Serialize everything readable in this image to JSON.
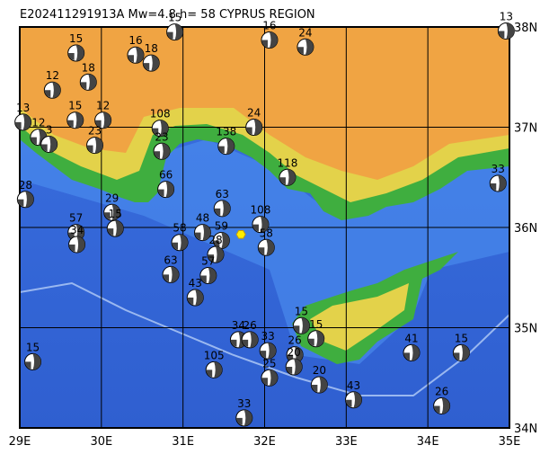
{
  "title": "E202411291913A Mw=4.8 h= 58 CYPRUS REGION",
  "lon_ticks": [
    {
      "value": 29,
      "label": "29E"
    },
    {
      "value": 30,
      "label": "30E"
    },
    {
      "value": 31,
      "label": "31E"
    },
    {
      "value": 32,
      "label": "32E"
    },
    {
      "value": 33,
      "label": "33E"
    },
    {
      "value": 34,
      "label": "34E"
    },
    {
      "value": 35,
      "label": "35E"
    }
  ],
  "lat_ticks": [
    {
      "value": 34,
      "label": "34N"
    },
    {
      "value": 35,
      "label": "35N"
    },
    {
      "value": 36,
      "label": "36N"
    },
    {
      "value": 37,
      "label": "37N"
    },
    {
      "value": 38,
      "label": "38N"
    }
  ],
  "main_event": {
    "lon": 31.71,
    "lat": 35.93
  },
  "events": [
    {
      "lon": 30.9,
      "lat": 37.95,
      "depth": 15
    },
    {
      "lon": 32.06,
      "lat": 37.87,
      "depth": 16
    },
    {
      "lon": 34.96,
      "lat": 37.96,
      "depth": 13
    },
    {
      "lon": 30.42,
      "lat": 37.72,
      "depth": 16
    },
    {
      "lon": 29.69,
      "lat": 37.74,
      "depth": 15
    },
    {
      "lon": 30.61,
      "lat": 37.64,
      "depth": 18
    },
    {
      "lon": 32.5,
      "lat": 37.8,
      "depth": 24
    },
    {
      "lon": 29.4,
      "lat": 37.37,
      "depth": 12
    },
    {
      "lon": 29.84,
      "lat": 37.45,
      "depth": 18
    },
    {
      "lon": 29.04,
      "lat": 37.05,
      "depth": 13
    },
    {
      "lon": 29.23,
      "lat": 36.9,
      "depth": 12
    },
    {
      "lon": 29.36,
      "lat": 36.83,
      "depth": 3
    },
    {
      "lon": 29.68,
      "lat": 37.07,
      "depth": 15
    },
    {
      "lon": 30.02,
      "lat": 37.07,
      "depth": 12
    },
    {
      "lon": 29.92,
      "lat": 36.82,
      "depth": 23
    },
    {
      "lon": 30.72,
      "lat": 36.99,
      "depth": 108
    },
    {
      "lon": 30.74,
      "lat": 36.76,
      "depth": 23
    },
    {
      "lon": 31.87,
      "lat": 37.0,
      "depth": 24
    },
    {
      "lon": 31.53,
      "lat": 36.81,
      "depth": 138
    },
    {
      "lon": 32.28,
      "lat": 36.5,
      "depth": 118
    },
    {
      "lon": 34.86,
      "lat": 36.44,
      "depth": 33
    },
    {
      "lon": 30.79,
      "lat": 36.38,
      "depth": 66
    },
    {
      "lon": 29.07,
      "lat": 36.28,
      "depth": 28
    },
    {
      "lon": 30.13,
      "lat": 36.15,
      "depth": 29
    },
    {
      "lon": 30.17,
      "lat": 35.99,
      "depth": 15
    },
    {
      "lon": 29.69,
      "lat": 35.95,
      "depth": 57
    },
    {
      "lon": 29.7,
      "lat": 35.83,
      "depth": 34
    },
    {
      "lon": 31.48,
      "lat": 36.19,
      "depth": 63
    },
    {
      "lon": 31.24,
      "lat": 35.95,
      "depth": 48
    },
    {
      "lon": 30.96,
      "lat": 35.85,
      "depth": 58
    },
    {
      "lon": 31.95,
      "lat": 36.03,
      "depth": 108
    },
    {
      "lon": 32.02,
      "lat": 35.8,
      "depth": 58
    },
    {
      "lon": 31.47,
      "lat": 35.87,
      "depth": 59
    },
    {
      "lon": 30.85,
      "lat": 35.53,
      "depth": 63
    },
    {
      "lon": 31.4,
      "lat": 35.73,
      "depth": 28
    },
    {
      "lon": 31.31,
      "lat": 35.52,
      "depth": 57
    },
    {
      "lon": 31.15,
      "lat": 35.3,
      "depth": 43
    },
    {
      "lon": 32.45,
      "lat": 35.02,
      "depth": 15
    },
    {
      "lon": 32.63,
      "lat": 34.89,
      "depth": 15
    },
    {
      "lon": 31.68,
      "lat": 34.88,
      "depth": 34
    },
    {
      "lon": 31.82,
      "lat": 34.88,
      "depth": 26
    },
    {
      "lon": 32.04,
      "lat": 34.77,
      "depth": 33
    },
    {
      "lon": 31.38,
      "lat": 34.58,
      "depth": 105
    },
    {
      "lon": 32.06,
      "lat": 34.5,
      "depth": 25
    },
    {
      "lon": 32.37,
      "lat": 34.73,
      "depth": 26
    },
    {
      "lon": 32.36,
      "lat": 34.61,
      "depth": 20
    },
    {
      "lon": 32.67,
      "lat": 34.43,
      "depth": 20
    },
    {
      "lon": 33.09,
      "lat": 34.28,
      "depth": 43
    },
    {
      "lon": 33.8,
      "lat": 34.75,
      "depth": 41
    },
    {
      "lon": 34.41,
      "lat": 34.75,
      "depth": 15
    },
    {
      "lon": 34.17,
      "lat": 34.22,
      "depth": 26
    },
    {
      "lon": 31.75,
      "lat": 34.1,
      "depth": 33
    },
    {
      "lon": 29.16,
      "lat": 34.66,
      "depth": 15
    }
  ]
}
